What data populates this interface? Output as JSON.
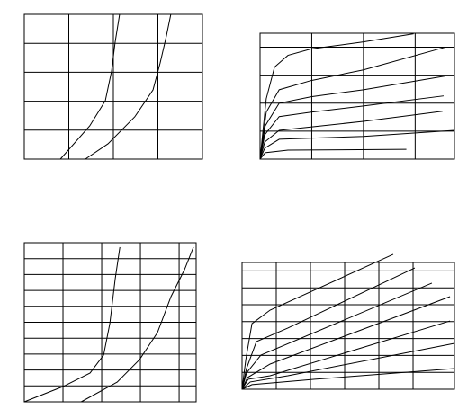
{
  "chart_data": [
    {
      "type": "line",
      "grid": true,
      "xlim": [
        0,
        4
      ],
      "xticks": [
        1,
        2,
        3
      ],
      "ylim": [
        0,
        5
      ],
      "yticks": [
        1,
        2,
        3,
        4
      ],
      "series": [
        {
          "color": "#000000",
          "x": [
            0.81,
            1.47,
            1.82,
            1.96,
            2.04,
            2.14
          ],
          "values": [
            0,
            1.15,
            2.02,
            3.04,
            4.04,
            5.0
          ]
        },
        {
          "color": "#000000",
          "x": [
            1.37,
            1.88,
            2.48,
            2.89,
            3.05,
            3.19,
            3.29
          ],
          "values": [
            0,
            0.53,
            1.46,
            2.39,
            3.32,
            4.25,
            5.0
          ]
        }
      ]
    },
    {
      "type": "line",
      "grid": true,
      "xlim": [
        0,
        3.76
      ],
      "xticks": [
        1,
        2,
        3
      ],
      "ylim": [
        0,
        4.5
      ],
      "yticks": [
        1,
        2,
        3,
        4
      ],
      "series": [
        {
          "color": "#000000",
          "x": [
            0,
            0.12,
            0.28,
            0.54,
            0.99,
            2.0,
            2.97
          ],
          "values": [
            0,
            2.16,
            3.29,
            3.71,
            3.94,
            4.19,
            4.48
          ]
        },
        {
          "color": "#000000",
          "x": [
            0,
            0.12,
            0.37,
            0.99,
            2.0,
            3.58
          ],
          "values": [
            0,
            1.68,
            2.48,
            2.81,
            3.19,
            4.0
          ]
        },
        {
          "color": "#000000",
          "x": [
            0,
            0.1,
            0.37,
            0.99,
            2.0,
            3.58
          ],
          "values": [
            0,
            1.19,
            2.0,
            2.23,
            2.48,
            2.97
          ]
        },
        {
          "color": "#000000",
          "x": [
            0,
            0.09,
            0.37,
            0.99,
            2.0,
            3.55
          ],
          "values": [
            0,
            0.87,
            1.52,
            1.68,
            1.9,
            2.26
          ]
        },
        {
          "color": "#000000",
          "x": [
            0,
            0.09,
            0.37,
            2.0,
            3.53
          ],
          "values": [
            0,
            0.61,
            1.03,
            1.35,
            1.71
          ]
        },
        {
          "color": "#000000",
          "x": [
            0,
            0.09,
            0.37,
            2.0,
            3.76
          ],
          "values": [
            0,
            0.39,
            0.71,
            0.81,
            1.03
          ]
        },
        {
          "color": "#000000",
          "x": [
            0,
            0.1,
            0.54,
            2.83
          ],
          "values": [
            0,
            0.23,
            0.32,
            0.35
          ]
        }
      ]
    },
    {
      "type": "line",
      "grid": true,
      "xlim": [
        0,
        4.44
      ],
      "xticks": [
        1,
        2,
        3,
        4
      ],
      "ylim": [
        0,
        10
      ],
      "yticks": [
        1,
        2,
        3,
        4,
        5,
        6,
        7,
        8,
        9
      ],
      "series": [
        {
          "color": "#000000",
          "x": [
            0,
            1,
            1.7,
            2.05,
            2.21,
            2.35,
            2.47
          ],
          "values": [
            0,
            0.96,
            1.81,
            2.94,
            4.92,
            7.74,
            9.72
          ]
        },
        {
          "color": "#000000",
          "x": [
            1.47,
            2.4,
            2.98,
            3.44,
            3.79,
            4.14,
            4.37
          ],
          "values": [
            0,
            1.24,
            2.66,
            4.35,
            6.61,
            8.31,
            9.72
          ]
        }
      ]
    },
    {
      "type": "line",
      "grid": true,
      "xlim": [
        0,
        6.21
      ],
      "xticks": [
        1,
        2,
        3,
        4,
        5
      ],
      "ylim": [
        0,
        7.5
      ],
      "yticks": [
        1,
        2,
        3,
        4,
        5,
        6,
        7
      ],
      "series": [
        {
          "color": "#000000",
          "x": [
            0,
            0.11,
            0.29,
            0.82,
            4.42
          ],
          "values": [
            0,
            1.76,
            3.88,
            4.68,
            7.98
          ]
        },
        {
          "color": "#000000",
          "x": [
            0,
            0.13,
            0.42,
            1.34,
            5.05
          ],
          "values": [
            0,
            1.22,
            2.82,
            3.62,
            7.18
          ]
        },
        {
          "color": "#000000",
          "x": [
            0,
            0.13,
            0.55,
            5.55
          ],
          "values": [
            0,
            0.96,
            2.02,
            6.28
          ]
        },
        {
          "color": "#000000",
          "x": [
            0,
            0.16,
            0.82,
            6.08
          ],
          "values": [
            0,
            0.69,
            1.49,
            5.48
          ]
        },
        {
          "color": "#000000",
          "x": [
            0,
            0.18,
            0.82,
            6.08
          ],
          "values": [
            0,
            0.59,
            0.8,
            4.04
          ]
        },
        {
          "color": "#000000",
          "x": [
            0,
            0.24,
            1.34,
            6.21
          ],
          "values": [
            0,
            0.43,
            0.8,
            2.71
          ]
        },
        {
          "color": "#000000",
          "x": [
            0,
            0.29,
            2.13,
            6.21
          ],
          "values": [
            0,
            0.27,
            0.59,
            1.22
          ]
        }
      ]
    }
  ]
}
